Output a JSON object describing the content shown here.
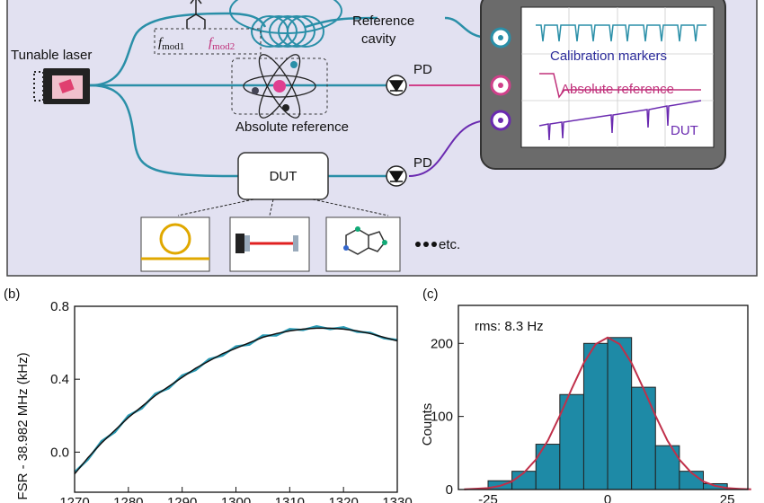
{
  "diagram": {
    "tunable_laser": "Tunable laser",
    "reference_cavity": [
      "Reference",
      "cavity"
    ],
    "f_mod1": {
      "symbol": "f",
      "subscript": "mod1"
    },
    "f_mod2": {
      "symbol": "f",
      "subscript": "mod2"
    },
    "absolute_reference": "Absolute reference",
    "pd_top": "PD",
    "pd_bottom": "PD",
    "dut": "DUT",
    "screen": {
      "calibration_markers": "Calibration markers",
      "absolute_reference": "Absolute reference",
      "dut": "DUT"
    },
    "etc": "etc."
  },
  "chart_data": [
    {
      "type": "line",
      "label": "(b)",
      "ylabel": "FSR - 38.982 MHz (kHz)",
      "x": [
        1270,
        1272.5,
        1275,
        1277.5,
        1280,
        1282.5,
        1285,
        1287.5,
        1290,
        1292.5,
        1295,
        1297.5,
        1300,
        1302.5,
        1305,
        1307.5,
        1310,
        1312.5,
        1315,
        1317.5,
        1320,
        1322.5,
        1325,
        1327.5,
        1330
      ],
      "series": [
        {
          "color": "#2a9bb5",
          "values": [
            -0.11,
            -0.04,
            0.06,
            0.11,
            0.2,
            0.24,
            0.32,
            0.35,
            0.42,
            0.45,
            0.51,
            0.53,
            0.58,
            0.59,
            0.64,
            0.64,
            0.675,
            0.67,
            0.69,
            0.675,
            0.685,
            0.66,
            0.655,
            0.625,
            0.615
          ]
        },
        {
          "color": "#111111",
          "values": [
            -0.12,
            -0.03,
            0.05,
            0.12,
            0.19,
            0.25,
            0.31,
            0.36,
            0.41,
            0.46,
            0.5,
            0.54,
            0.57,
            0.6,
            0.63,
            0.65,
            0.665,
            0.675,
            0.68,
            0.68,
            0.675,
            0.665,
            0.65,
            0.63,
            0.61
          ]
        }
      ],
      "xlim": [
        1270,
        1330
      ],
      "xticks": [
        1270,
        1280,
        1290,
        1300,
        1310,
        1320,
        1330
      ],
      "ylim": [
        -0.22,
        0.8
      ],
      "yticks": [
        {
          "value": 0,
          "label": "0.0"
        },
        {
          "value": 0.4,
          "label": "0.4"
        },
        {
          "value": 0.8,
          "label": "0.8"
        }
      ]
    },
    {
      "type": "histogram",
      "label": "(c)",
      "annotation": "rms: 8.3 Hz",
      "ylabel": "Counts",
      "bins": [
        -25,
        -20,
        -15,
        -10,
        -5,
        0,
        5,
        10,
        15,
        20,
        25
      ],
      "values": [
        12,
        25,
        62,
        130,
        200,
        208,
        140,
        60,
        25,
        8
      ],
      "color": "#1e8aa6",
      "fit": {
        "color": "#c0304a",
        "x": [
          -30,
          -27.5,
          -25,
          -22.5,
          -20,
          -17.5,
          -15,
          -12.5,
          -10,
          -7.5,
          -5,
          -2.5,
          0,
          2.5,
          5,
          7.5,
          10,
          12.5,
          15,
          17.5,
          20,
          22.5,
          25,
          27.5,
          30
        ],
        "values": [
          0.3,
          1,
          2,
          5,
          11,
          23,
          41,
          67,
          101,
          138,
          173,
          199,
          208,
          199,
          173,
          138,
          101,
          67,
          41,
          23,
          11,
          5,
          2,
          1,
          0.3
        ]
      },
      "xlim": [
        -31.2,
        29.3
      ],
      "xticks": [
        -25,
        0,
        25
      ],
      "ylim": [
        0,
        252
      ],
      "yticks": [
        0,
        100,
        200
      ]
    }
  ]
}
